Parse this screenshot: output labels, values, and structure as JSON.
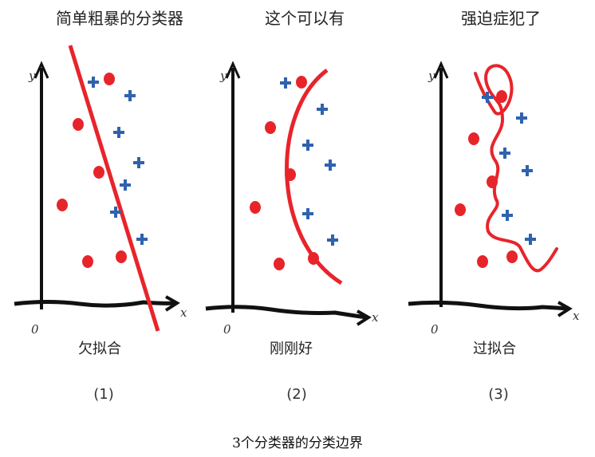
{
  "panels": [
    {
      "title": "简单粗暴的分类器",
      "label": "欠拟合",
      "number": "(1)"
    },
    {
      "title": "这个可以有",
      "label": "刚刚好",
      "number": "(2)"
    },
    {
      "title": "强迫症犯了",
      "label": "过拟合",
      "number": "(3)"
    }
  ],
  "axis": {
    "x": "x",
    "y": "y",
    "origin": "0"
  },
  "caption": "3个分类器的分类边界",
  "colors": {
    "circle": "#e8242b",
    "plus": "#2f62ae",
    "boundary": "#e8242b",
    "axis": "#111111"
  }
}
